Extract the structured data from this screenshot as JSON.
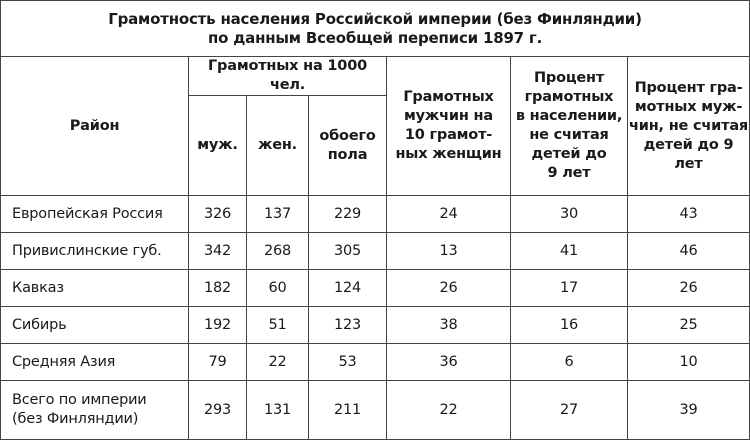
{
  "title": {
    "line1": "Грамотность населения Российской империи (без Финляндии)",
    "line2": "по данным Всеобщей переписи 1897 г."
  },
  "headers": {
    "region": "Район",
    "group": "Грамотных на 1000 чел.",
    "male": "муж.",
    "female": "жен.",
    "both": [
      "обоего",
      "пола"
    ],
    "ratio": [
      "Грамотных",
      "мужчин на",
      "10 грамот-",
      "ных женщин"
    ],
    "pct_pop": [
      "Процент",
      "грамотных",
      "в населении,",
      "не считая",
      "детей до",
      "9 лет"
    ],
    "pct_men": [
      "Процент гра-",
      "мотных муж-",
      "чин, не считая",
      "детей до 9 лет"
    ]
  },
  "rows": [
    {
      "region": [
        "Европейская Россия"
      ],
      "male": "326",
      "female": "137",
      "both": "229",
      "ratio": "24",
      "pct_pop": "30",
      "pct_men": "43"
    },
    {
      "region": [
        "Привислинские губ."
      ],
      "male": "342",
      "female": "268",
      "both": "305",
      "ratio": "13",
      "pct_pop": "41",
      "pct_men": "46"
    },
    {
      "region": [
        "Кавказ"
      ],
      "male": "182",
      "female": "60",
      "both": "124",
      "ratio": "26",
      "pct_pop": "17",
      "pct_men": "26"
    },
    {
      "region": [
        "Сибирь"
      ],
      "male": "192",
      "female": "51",
      "both": "123",
      "ratio": "38",
      "pct_pop": "16",
      "pct_men": "25"
    },
    {
      "region": [
        "Средняя Азия"
      ],
      "male": "79",
      "female": "22",
      "both": "53",
      "ratio": "36",
      "pct_pop": "6",
      "pct_men": "10"
    },
    {
      "region": [
        "Всего по империи",
        "(без Финляндии)"
      ],
      "male": "293",
      "female": "131",
      "both": "211",
      "ratio": "22",
      "pct_pop": "27",
      "pct_men": "39"
    }
  ]
}
